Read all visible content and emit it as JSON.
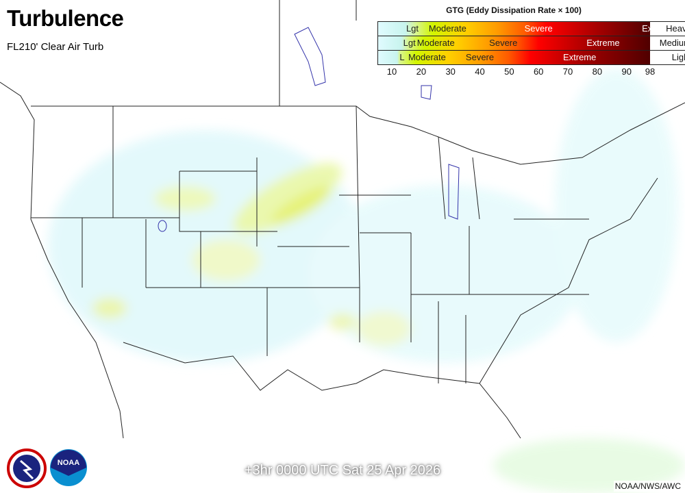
{
  "header": {
    "title": "Turbulence",
    "subtitle": "FL210' Clear Air Turb"
  },
  "legend": {
    "title": "GTG (Eddy Dissipation Rate × 100)",
    "rows": [
      {
        "name": "Heavy",
        "labels": [
          {
            "text": "Lgt",
            "at": 17
          },
          {
            "text": "Moderate",
            "at": 29
          },
          {
            "text": "Severe",
            "at": 60
          },
          {
            "text": "Ex",
            "at": 97
          }
        ]
      },
      {
        "name": "Medium",
        "labels": [
          {
            "text": "Lgt",
            "at": 16
          },
          {
            "text": "Moderate",
            "at": 25
          },
          {
            "text": "Severe",
            "at": 48
          },
          {
            "text": "Extreme",
            "at": 82
          }
        ]
      },
      {
        "name": "Light",
        "labels": [
          {
            "text": "L",
            "at": 13.5
          },
          {
            "text": "Moderate",
            "at": 22
          },
          {
            "text": "Severe",
            "at": 40
          },
          {
            "text": "Extreme",
            "at": 74
          }
        ]
      }
    ],
    "ticks": [
      "10",
      "20",
      "30",
      "40",
      "50",
      "60",
      "70",
      "80",
      "90",
      "98"
    ],
    "colors": [
      "#e0fbff",
      "#c8f4ee",
      "#d8f590",
      "#d2f500",
      "#ffd000",
      "#ff9a00",
      "#ff5a00",
      "#ff0000",
      "#a00000",
      "#500000"
    ]
  },
  "valid_time": "+3hr 0000 UTC Sat 25 Apr 2026",
  "credit": "NOAA/NWS/AWC",
  "logos": [
    "NATIONAL WEATHER SERVICE",
    "NOAA"
  ]
}
